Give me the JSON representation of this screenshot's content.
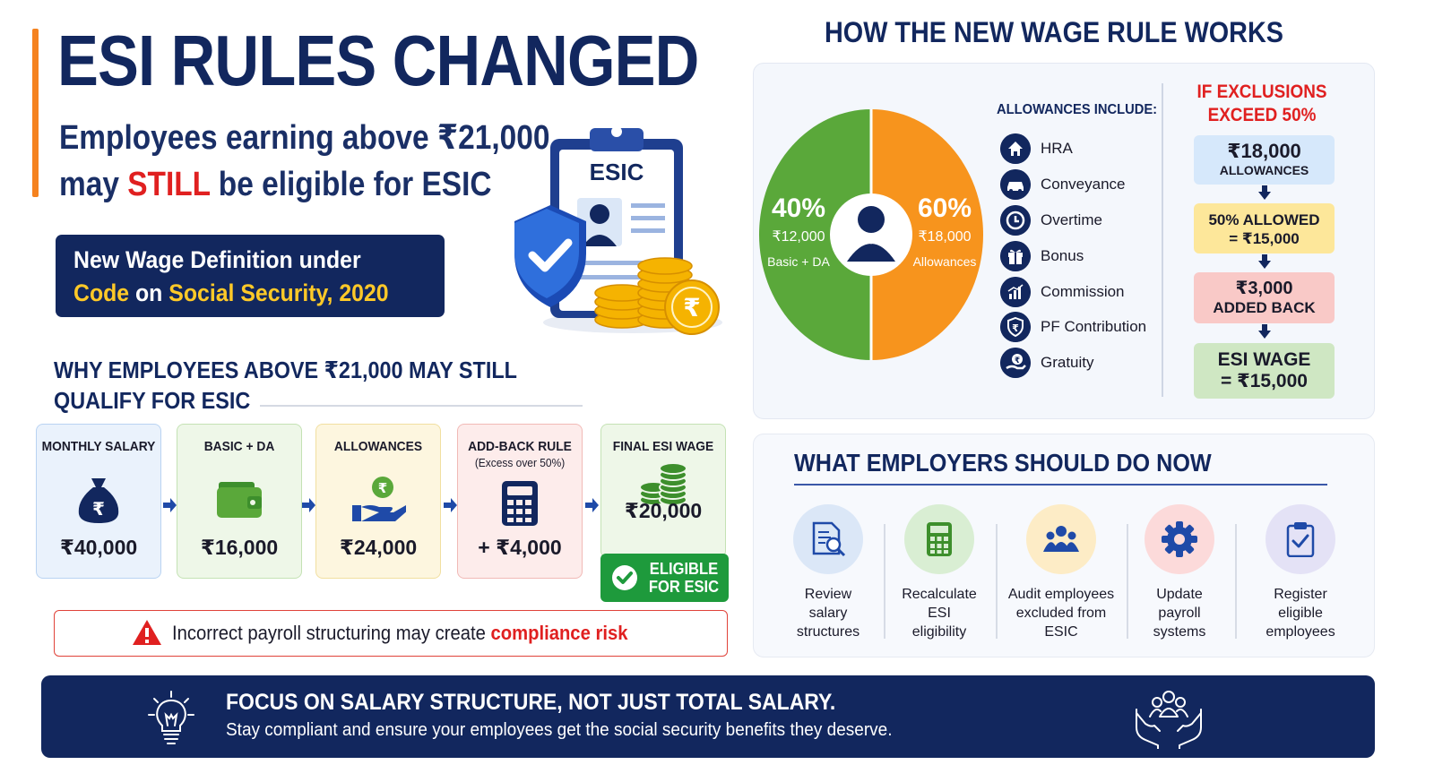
{
  "header": {
    "title": "ESI RULES CHANGED",
    "subtitle_line1": "Employees earning above ₹21,000",
    "subtitle_may": "may ",
    "subtitle_still": "STILL",
    "subtitle_rest": " be eligible for ESIC",
    "wage_def_line1": "New Wage Definition under",
    "wage_def_code": "Code",
    "wage_def_on": " on ",
    "wage_def_act": "Social Security, 2020",
    "clipboard_label": "ESIC"
  },
  "why": {
    "title_line1": "WHY EMPLOYEES ABOVE ₹21,000 MAY STILL",
    "title_line2": "QUALIFY FOR ESIC",
    "cards": [
      {
        "title": "MONTHLY SALARY",
        "sub": "",
        "value": "₹40,000",
        "icon": "money-bag-icon"
      },
      {
        "title": "BASIC + DA",
        "sub": "",
        "value": "₹16,000",
        "icon": "wallet-icon"
      },
      {
        "title": "ALLOWANCES",
        "sub": "",
        "value": "₹24,000",
        "icon": "hand-coin-icon"
      },
      {
        "title": "ADD-BACK RULE",
        "sub": "(Excess over 50%)",
        "value": "+ ₹4,000",
        "icon": "calculator-icon"
      },
      {
        "title": "FINAL ESI WAGE",
        "sub": "",
        "value": "₹20,000",
        "icon": "coin-stack-icon"
      }
    ],
    "eligible_line1": "ELIGIBLE",
    "eligible_line2": "FOR ESIC",
    "risk_text": "Incorrect payroll structuring may create ",
    "risk_highlight": "compliance risk"
  },
  "how": {
    "title": "HOW THE NEW WAGE RULE WORKS",
    "pie": {
      "left_pct": "40%",
      "left_amt": "₹12,000",
      "left_label": "Basic + DA",
      "right_pct": "60%",
      "right_amt": "₹18,000",
      "right_label": "Allowances",
      "left_color": "#5aa83a",
      "right_color": "#f7941d"
    },
    "allowances_head": "ALLOWANCES INCLUDE:",
    "allowances": [
      {
        "label": "HRA",
        "icon": "house-icon"
      },
      {
        "label": "Conveyance",
        "icon": "car-icon"
      },
      {
        "label": "Overtime",
        "icon": "clock-icon"
      },
      {
        "label": "Bonus",
        "icon": "gift-icon"
      },
      {
        "label": "Commission",
        "icon": "bar-chart-icon"
      },
      {
        "label": "PF Contribution",
        "icon": "rupee-shield-icon"
      },
      {
        "label": "Gratuity",
        "icon": "rupee-hand-icon"
      }
    ],
    "exclusions_head_line1": "IF EXCLUSIONS",
    "exclusions_head_line2": "EXCEED 50%",
    "steps": [
      {
        "line1": "₹18,000",
        "line2": "ALLOWANCES",
        "color": "#d6e8fb"
      },
      {
        "line1": "50% ALLOWED",
        "line2": "= ₹15,000",
        "color": "#fde79a"
      },
      {
        "line1": "₹3,000",
        "line2": "ADDED BACK",
        "color": "#f9c9c7"
      },
      {
        "line1": "ESI WAGE",
        "line2": "= ₹15,000",
        "color": "#cfe7c3"
      }
    ]
  },
  "employers": {
    "title": "WHAT EMPLOYERS SHOULD DO NOW",
    "items": [
      {
        "l1": "Review",
        "l2": "salary",
        "l3": "structures",
        "icon": "document-search-icon"
      },
      {
        "l1": "Recalculate",
        "l2": "ESI",
        "l3": "eligibility",
        "icon": "calculator-icon"
      },
      {
        "l1": "Audit employees",
        "l2": "excluded from",
        "l3": "ESIC",
        "icon": "people-group-icon"
      },
      {
        "l1": "Update",
        "l2": "payroll",
        "l3": "systems",
        "icon": "gear-icon"
      },
      {
        "l1": "Register",
        "l2": "eligible",
        "l3": "employees",
        "icon": "clipboard-check-icon"
      }
    ]
  },
  "banner": {
    "headline": "FOCUS ON SALARY STRUCTURE, NOT JUST TOTAL SALARY.",
    "subline": "Stay compliant and ensure your employees get the social security benefits they deserve."
  }
}
